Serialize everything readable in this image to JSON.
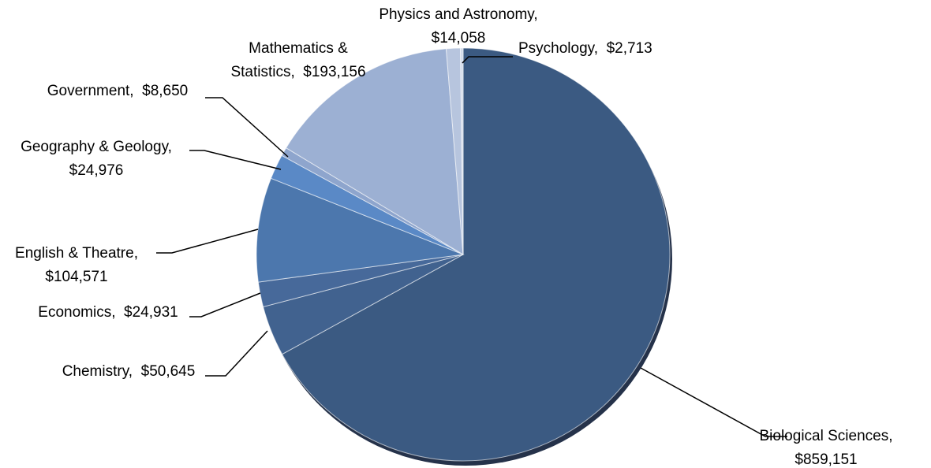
{
  "chart_data": {
    "type": "pie",
    "title": "",
    "start_angle_deg": 0,
    "direction": "clockwise",
    "slices": [
      {
        "name": "Biological Sciences",
        "value": 859151,
        "label": [
          "Biological Sciences,",
          "$859,151"
        ],
        "color": "#3b5a82"
      },
      {
        "name": "Chemistry",
        "value": 50645,
        "label": [
          "Chemistry,  $50,645"
        ],
        "color": "#41628f"
      },
      {
        "name": "Economics",
        "value": 24931,
        "label": [
          "Economics,  $24,931"
        ],
        "color": "#47699a"
      },
      {
        "name": "English & Theatre",
        "value": 104571,
        "label": [
          "English & Theatre,",
          "$104,571"
        ],
        "color": "#4c77ad"
      },
      {
        "name": "Geography & Geology",
        "value": 24976,
        "label": [
          "Geography & Geology,",
          "$24,976"
        ],
        "color": "#5a89c6"
      },
      {
        "name": "Government",
        "value": 8650,
        "label": [
          "Government,  $8,650"
        ],
        "color": "#8ea5cd"
      },
      {
        "name": "Mathematics & Statistics",
        "value": 193156,
        "label": [
          "Mathematics &",
          "Statistics,  $193,156"
        ],
        "color": "#9cb0d3"
      },
      {
        "name": "Physics and Astronomy",
        "value": 14058,
        "label": [
          "Physics and Astronomy,",
          "$14,058"
        ],
        "color": "#b7c5de"
      },
      {
        "name": "Psychology",
        "value": 2713,
        "label": [
          "Psychology,  $2,713"
        ],
        "color": "#d3dbea"
      }
    ]
  }
}
